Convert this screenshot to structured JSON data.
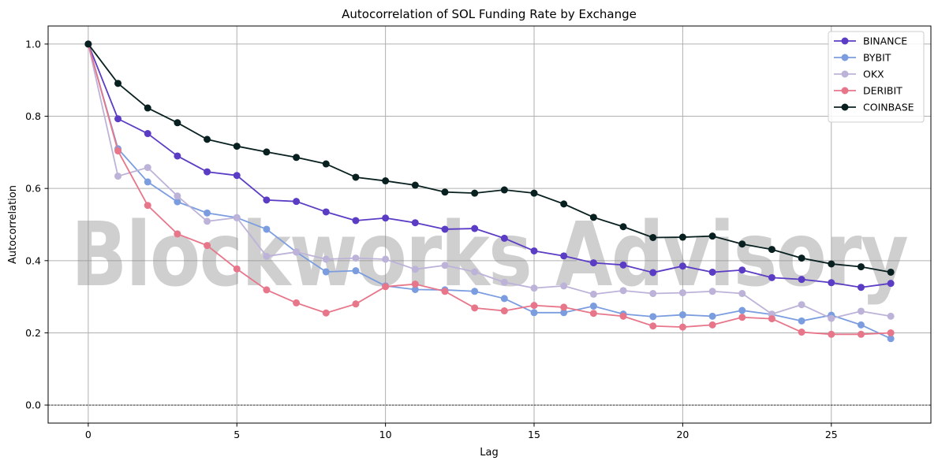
{
  "chart_data": {
    "type": "line",
    "title": "Autocorrelation of SOL Funding Rate by Exchange",
    "xlabel": "Lag",
    "ylabel": "Autocorrelation",
    "xlim": [
      -1.35,
      28.35
    ],
    "ylim": [
      -0.05,
      1.05
    ],
    "x_ticks": [
      0,
      5,
      10,
      15,
      20,
      25
    ],
    "y_ticks": [
      0.0,
      0.2,
      0.4,
      0.6,
      0.8,
      1.0
    ],
    "x_tick_labels": [
      "0",
      "5",
      "10",
      "15",
      "20",
      "25"
    ],
    "y_tick_labels": [
      "0.0",
      "0.2",
      "0.4",
      "0.6",
      "0.8",
      "1.0"
    ],
    "grid": true,
    "zero_line": {
      "y": 0,
      "style": "dashed",
      "color": "#000000"
    },
    "legend_position": "top-right",
    "x": [
      0,
      1,
      2,
      3,
      4,
      5,
      6,
      7,
      8,
      9,
      10,
      11,
      12,
      13,
      14,
      15,
      16,
      17,
      18,
      19,
      20,
      21,
      22,
      23,
      24,
      25,
      26,
      27
    ],
    "series": [
      {
        "name": "BINANCE",
        "color": "#5b3cc4",
        "values": [
          1.0,
          0.793,
          0.752,
          0.69,
          0.646,
          0.636,
          0.568,
          0.564,
          0.535,
          0.511,
          0.518,
          0.505,
          0.487,
          0.489,
          0.462,
          0.427,
          0.413,
          0.394,
          0.388,
          0.367,
          0.385,
          0.368,
          0.374,
          0.353,
          0.348,
          0.339,
          0.326,
          0.337
        ]
      },
      {
        "name": "BYBIT",
        "color": "#7b9de0",
        "values": [
          1.0,
          0.71,
          0.618,
          0.563,
          0.532,
          0.519,
          0.487,
          0.424,
          0.369,
          0.372,
          0.33,
          0.32,
          0.319,
          0.315,
          0.295,
          0.256,
          0.256,
          0.274,
          0.252,
          0.245,
          0.25,
          0.246,
          0.262,
          0.251,
          0.233,
          0.249,
          0.222,
          0.184
        ]
      },
      {
        "name": "OKX",
        "color": "#bdb3d9",
        "values": [
          1.0,
          0.634,
          0.658,
          0.579,
          0.509,
          0.519,
          0.412,
          0.424,
          0.404,
          0.407,
          0.404,
          0.376,
          0.387,
          0.369,
          0.34,
          0.324,
          0.33,
          0.307,
          0.317,
          0.309,
          0.311,
          0.315,
          0.309,
          0.252,
          0.278,
          0.24,
          0.26,
          0.246
        ]
      },
      {
        "name": "DERIBIT",
        "color": "#e8768a",
        "values": [
          1.0,
          0.704,
          0.553,
          0.474,
          0.442,
          0.377,
          0.319,
          0.283,
          0.255,
          0.28,
          0.328,
          0.335,
          0.315,
          0.269,
          0.261,
          0.276,
          0.271,
          0.254,
          0.246,
          0.219,
          0.216,
          0.222,
          0.243,
          0.239,
          0.202,
          0.196,
          0.196,
          0.2
        ]
      },
      {
        "name": "COINBASE",
        "color": "#08201f",
        "values": [
          1.0,
          0.891,
          0.823,
          0.782,
          0.736,
          0.717,
          0.701,
          0.686,
          0.668,
          0.631,
          0.621,
          0.609,
          0.59,
          0.587,
          0.596,
          0.587,
          0.557,
          0.52,
          0.494,
          0.464,
          0.465,
          0.468,
          0.446,
          0.431,
          0.407,
          0.391,
          0.383,
          0.368
        ]
      }
    ]
  },
  "watermark": {
    "text": "Blockworks Advisory",
    "color": "#8c8c8c"
  },
  "style": {
    "grid_color": "#b0b0b0",
    "axis_color": "#000000"
  }
}
